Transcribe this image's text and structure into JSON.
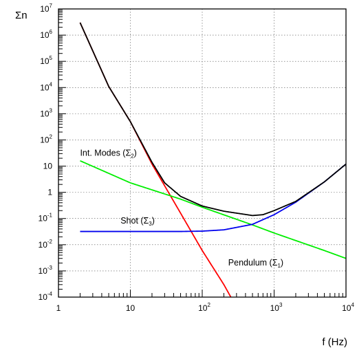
{
  "chart_data": {
    "type": "line",
    "x_scale": "log",
    "y_scale": "log",
    "xlim": [
      1,
      10000
    ],
    "ylim": [
      0.0001,
      10000000
    ],
    "grid": true,
    "xlabel": "f (Hz)",
    "ylabel": "Σn",
    "x_tick_labels": [
      {
        "x": 1,
        "base": "1",
        "exp": ""
      },
      {
        "x": 10,
        "base": "10",
        "exp": ""
      },
      {
        "x": 100,
        "base": "10",
        "exp": "2"
      },
      {
        "x": 1000,
        "base": "10",
        "exp": "3"
      },
      {
        "x": 10000,
        "base": "10",
        "exp": "4"
      }
    ],
    "y_tick_labels": [
      {
        "y": 0.0001,
        "base": "10",
        "exp": "-4"
      },
      {
        "y": 0.001,
        "base": "10",
        "exp": "-3"
      },
      {
        "y": 0.01,
        "base": "10",
        "exp": "-2"
      },
      {
        "y": 0.1,
        "base": "10",
        "exp": "-1"
      },
      {
        "y": 1,
        "base": "1",
        "exp": ""
      },
      {
        "y": 10,
        "base": "10",
        "exp": ""
      },
      {
        "y": 100,
        "base": "10",
        "exp": "2"
      },
      {
        "y": 1000,
        "base": "10",
        "exp": "3"
      },
      {
        "y": 10000,
        "base": "10",
        "exp": "4"
      },
      {
        "y": 100000,
        "base": "10",
        "exp": "5"
      },
      {
        "y": 1000000,
        "base": "10",
        "exp": "6"
      },
      {
        "y": 10000000,
        "base": "10",
        "exp": "7"
      }
    ],
    "series": [
      {
        "key": "pendulum",
        "color": "#ff0000",
        "x": [
          2,
          5,
          10,
          20,
          50,
          100,
          200,
          250
        ],
        "y": [
          3000000,
          11000,
          500,
          12,
          0.16,
          0.006,
          0.0003,
          0.0001
        ]
      },
      {
        "key": "int_modes",
        "color": "#00ee00",
        "x": [
          2,
          10,
          50,
          100,
          500,
          1000,
          5000,
          10000
        ],
        "y": [
          16,
          2.3,
          0.55,
          0.27,
          0.057,
          0.028,
          0.006,
          0.003
        ]
      },
      {
        "key": "shot",
        "color": "#0000ee",
        "x": [
          2,
          10,
          50,
          100,
          200,
          500,
          1000,
          2000,
          5000,
          10000
        ],
        "y": [
          0.032,
          0.032,
          0.032,
          0.033,
          0.037,
          0.06,
          0.14,
          0.42,
          2.5,
          12
        ]
      },
      {
        "key": "total",
        "color": "#000000",
        "x": [
          2,
          5,
          10,
          20,
          30,
          50,
          100,
          200,
          500,
          700,
          1000,
          2000,
          5000,
          10000
        ],
        "y": [
          3000000,
          11000,
          500,
          14,
          2.3,
          0.7,
          0.3,
          0.19,
          0.13,
          0.14,
          0.2,
          0.45,
          2.5,
          12
        ]
      }
    ],
    "annotations": [
      {
        "key": "int_modes",
        "text": "Int. Modes (Σ",
        "sub": "2",
        "close": ")",
        "x": 2,
        "y": 25
      },
      {
        "key": "shot",
        "text": "Shot (Σ",
        "sub": "3",
        "close": ")",
        "x": 7.3,
        "y": 0.065
      },
      {
        "key": "pendulum",
        "text": "Pendulum (Σ",
        "sub": "1",
        "close": ")",
        "x": 230,
        "y": 0.0016
      }
    ]
  }
}
